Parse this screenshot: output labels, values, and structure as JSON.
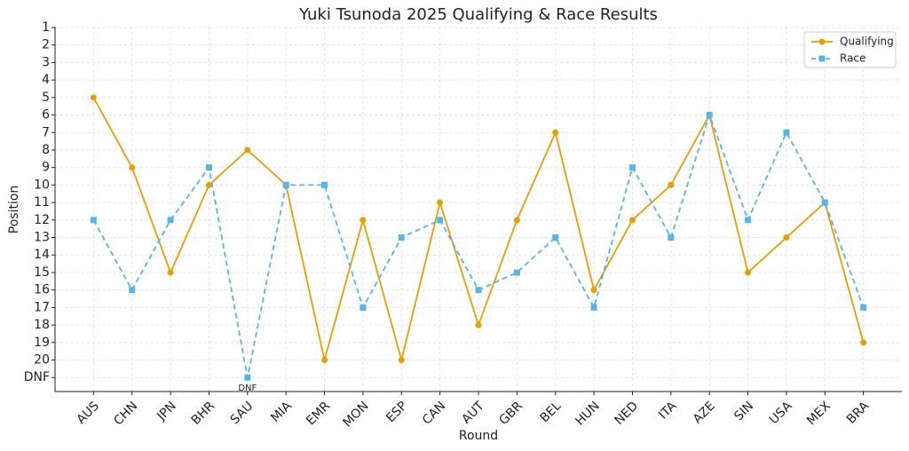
{
  "chart_data": {
    "type": "line",
    "title": "Yuki Tsunoda 2025 Qualifying & Race Results",
    "x_label": "Round",
    "y_label": "Position",
    "categories": [
      "AUS",
      "CHN",
      "JPN",
      "BHR",
      "SAU",
      "MIA",
      "EMR",
      "MON",
      "ESP",
      "CAN",
      "AUT",
      "GBR",
      "BEL",
      "HUN",
      "NED",
      "ITA",
      "AZE",
      "SIN",
      "USA",
      "MEX",
      "BRA"
    ],
    "series": [
      {
        "name": "Qualifying",
        "color": "#e69f00",
        "marker": "circle",
        "dashed": false,
        "values": [
          5,
          9,
          15,
          10,
          8,
          10,
          20,
          12,
          20,
          11,
          18,
          12,
          7,
          16,
          12,
          10,
          6,
          15,
          13,
          11,
          19
        ]
      },
      {
        "name": "Race",
        "color": "#56b4e9",
        "marker": "square",
        "dashed": true,
        "values": [
          12,
          16,
          12,
          9,
          21,
          10,
          10,
          17,
          13,
          12,
          16,
          15,
          13,
          17,
          9,
          13,
          6,
          12,
          7,
          11,
          17
        ]
      }
    ],
    "ylim": [
      21.8,
      0.95
    ],
    "yticks": [
      1,
      2,
      3,
      4,
      5,
      6,
      7,
      8,
      9,
      10,
      11,
      12,
      13,
      14,
      15,
      16,
      17,
      18,
      19,
      20,
      {
        "value": 21,
        "label": "DNF"
      }
    ],
    "annotations": [
      {
        "text": "DNF",
        "x": "SAU",
        "y": 21
      }
    ],
    "grid": true,
    "legend": "upper right"
  }
}
